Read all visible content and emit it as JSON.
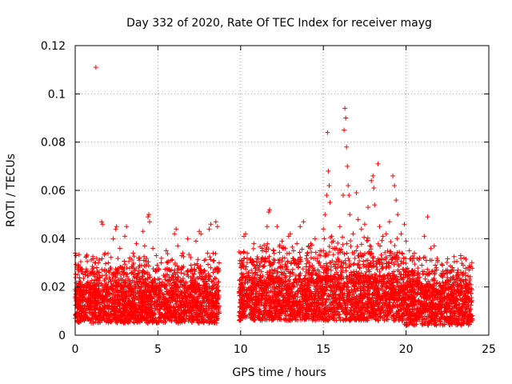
{
  "chart_data": {
    "type": "scatter",
    "title": "Day 332 of 2020, Rate Of TEC Index for receiver mayg",
    "xlabel": "GPS time / hours",
    "ylabel": "ROTI / TECUs",
    "xlim": [
      0,
      25
    ],
    "ylim": [
      0,
      0.12
    ],
    "xticks": [
      "0",
      "5",
      "10",
      "15",
      "20",
      "25"
    ],
    "yticks": [
      "0",
      "0.02",
      "0.04",
      "0.06",
      "0.08",
      "0.1",
      "0.12"
    ],
    "grid": true,
    "marker": "+",
    "color": "#ff0000",
    "series": [
      {
        "points": [
          [
            0.0,
            0.034
          ],
          [
            0.05,
            0.033
          ],
          [
            0.3,
            0.028
          ],
          [
            0.6,
            0.026
          ],
          [
            1.0,
            0.026
          ],
          [
            1.25,
            0.111
          ],
          [
            1.3,
            0.028
          ],
          [
            1.6,
            0.047
          ],
          [
            1.65,
            0.046
          ],
          [
            1.8,
            0.034
          ],
          [
            2.0,
            0.03
          ],
          [
            2.3,
            0.04
          ],
          [
            2.45,
            0.044
          ],
          [
            2.5,
            0.045
          ],
          [
            2.7,
            0.036
          ],
          [
            3.0,
            0.041
          ],
          [
            3.1,
            0.045
          ],
          [
            3.3,
            0.032
          ],
          [
            3.5,
            0.034
          ],
          [
            3.7,
            0.038
          ],
          [
            3.9,
            0.032
          ],
          [
            4.1,
            0.043
          ],
          [
            4.2,
            0.037
          ],
          [
            4.4,
            0.049
          ],
          [
            4.45,
            0.05
          ],
          [
            4.5,
            0.047
          ],
          [
            4.7,
            0.036
          ],
          [
            4.9,
            0.033
          ],
          [
            5.2,
            0.03
          ],
          [
            5.5,
            0.035
          ],
          [
            5.8,
            0.031
          ],
          [
            6.0,
            0.042
          ],
          [
            6.1,
            0.044
          ],
          [
            6.2,
            0.037
          ],
          [
            6.5,
            0.034
          ],
          [
            6.8,
            0.04
          ],
          [
            7.0,
            0.029
          ],
          [
            7.3,
            0.039
          ],
          [
            7.5,
            0.043
          ],
          [
            7.6,
            0.042
          ],
          [
            7.8,
            0.031
          ],
          [
            8.0,
            0.034
          ],
          [
            8.1,
            0.044
          ],
          [
            8.2,
            0.046
          ],
          [
            8.5,
            0.047
          ],
          [
            8.6,
            0.045
          ],
          [
            8.7,
            0.03
          ],
          [
            10.0,
            0.034
          ],
          [
            10.2,
            0.041
          ],
          [
            10.3,
            0.042
          ],
          [
            10.4,
            0.034
          ],
          [
            10.8,
            0.038
          ],
          [
            11.0,
            0.029
          ],
          [
            11.3,
            0.036
          ],
          [
            11.6,
            0.045
          ],
          [
            11.7,
            0.051
          ],
          [
            11.75,
            0.052
          ],
          [
            12.0,
            0.035
          ],
          [
            12.2,
            0.045
          ],
          [
            12.5,
            0.039
          ],
          [
            12.7,
            0.036
          ],
          [
            12.9,
            0.041
          ],
          [
            13.0,
            0.042
          ],
          [
            13.2,
            0.035
          ],
          [
            13.4,
            0.038
          ],
          [
            13.6,
            0.045
          ],
          [
            13.8,
            0.047
          ],
          [
            14.0,
            0.033
          ],
          [
            14.2,
            0.036
          ],
          [
            14.5,
            0.04
          ],
          [
            14.8,
            0.035
          ],
          [
            15.0,
            0.044
          ],
          [
            15.1,
            0.05
          ],
          [
            15.2,
            0.058
          ],
          [
            15.25,
            0.084
          ],
          [
            15.3,
            0.068
          ],
          [
            15.35,
            0.062
          ],
          [
            15.4,
            0.055
          ],
          [
            15.5,
            0.041
          ],
          [
            15.6,
            0.039
          ],
          [
            15.8,
            0.036
          ],
          [
            16.0,
            0.045
          ],
          [
            16.2,
            0.058
          ],
          [
            16.25,
            0.085
          ],
          [
            16.3,
            0.094
          ],
          [
            16.35,
            0.09
          ],
          [
            16.4,
            0.078
          ],
          [
            16.45,
            0.07
          ],
          [
            16.5,
            0.062
          ],
          [
            16.55,
            0.058
          ],
          [
            16.6,
            0.05
          ],
          [
            16.8,
            0.042
          ],
          [
            17.0,
            0.059
          ],
          [
            17.1,
            0.048
          ],
          [
            17.3,
            0.044
          ],
          [
            17.5,
            0.046
          ],
          [
            17.7,
            0.053
          ],
          [
            17.9,
            0.064
          ],
          [
            18.0,
            0.066
          ],
          [
            18.05,
            0.061
          ],
          [
            18.1,
            0.054
          ],
          [
            18.3,
            0.071
          ],
          [
            18.4,
            0.045
          ],
          [
            18.6,
            0.041
          ],
          [
            18.8,
            0.042
          ],
          [
            19.0,
            0.047
          ],
          [
            19.2,
            0.066
          ],
          [
            19.3,
            0.062
          ],
          [
            19.4,
            0.056
          ],
          [
            19.5,
            0.05
          ],
          [
            19.7,
            0.042
          ],
          [
            19.9,
            0.046
          ],
          [
            20.0,
            0.039
          ],
          [
            20.2,
            0.035
          ],
          [
            20.5,
            0.034
          ],
          [
            20.8,
            0.032
          ],
          [
            21.1,
            0.041
          ],
          [
            21.3,
            0.049
          ],
          [
            21.5,
            0.036
          ],
          [
            21.7,
            0.037
          ],
          [
            21.9,
            0.031
          ],
          [
            22.2,
            0.029
          ],
          [
            22.5,
            0.027
          ],
          [
            22.8,
            0.028
          ],
          [
            23.1,
            0.026
          ],
          [
            23.3,
            0.033
          ],
          [
            23.5,
            0.032
          ],
          [
            23.8,
            0.027
          ]
        ],
        "bands": [
          {
            "x": [
              0.0,
              8.7
            ],
            "low": 0.005,
            "high": 0.021,
            "peak": 0.028
          },
          {
            "x": [
              9.9,
              15.0
            ],
            "low": 0.006,
            "high": 0.024,
            "peak": 0.032
          },
          {
            "x": [
              15.0,
              19.9
            ],
            "low": 0.006,
            "high": 0.025,
            "peak": 0.035
          },
          {
            "x": [
              19.9,
              24.0
            ],
            "low": 0.004,
            "high": 0.021,
            "peak": 0.027
          }
        ]
      }
    ]
  }
}
